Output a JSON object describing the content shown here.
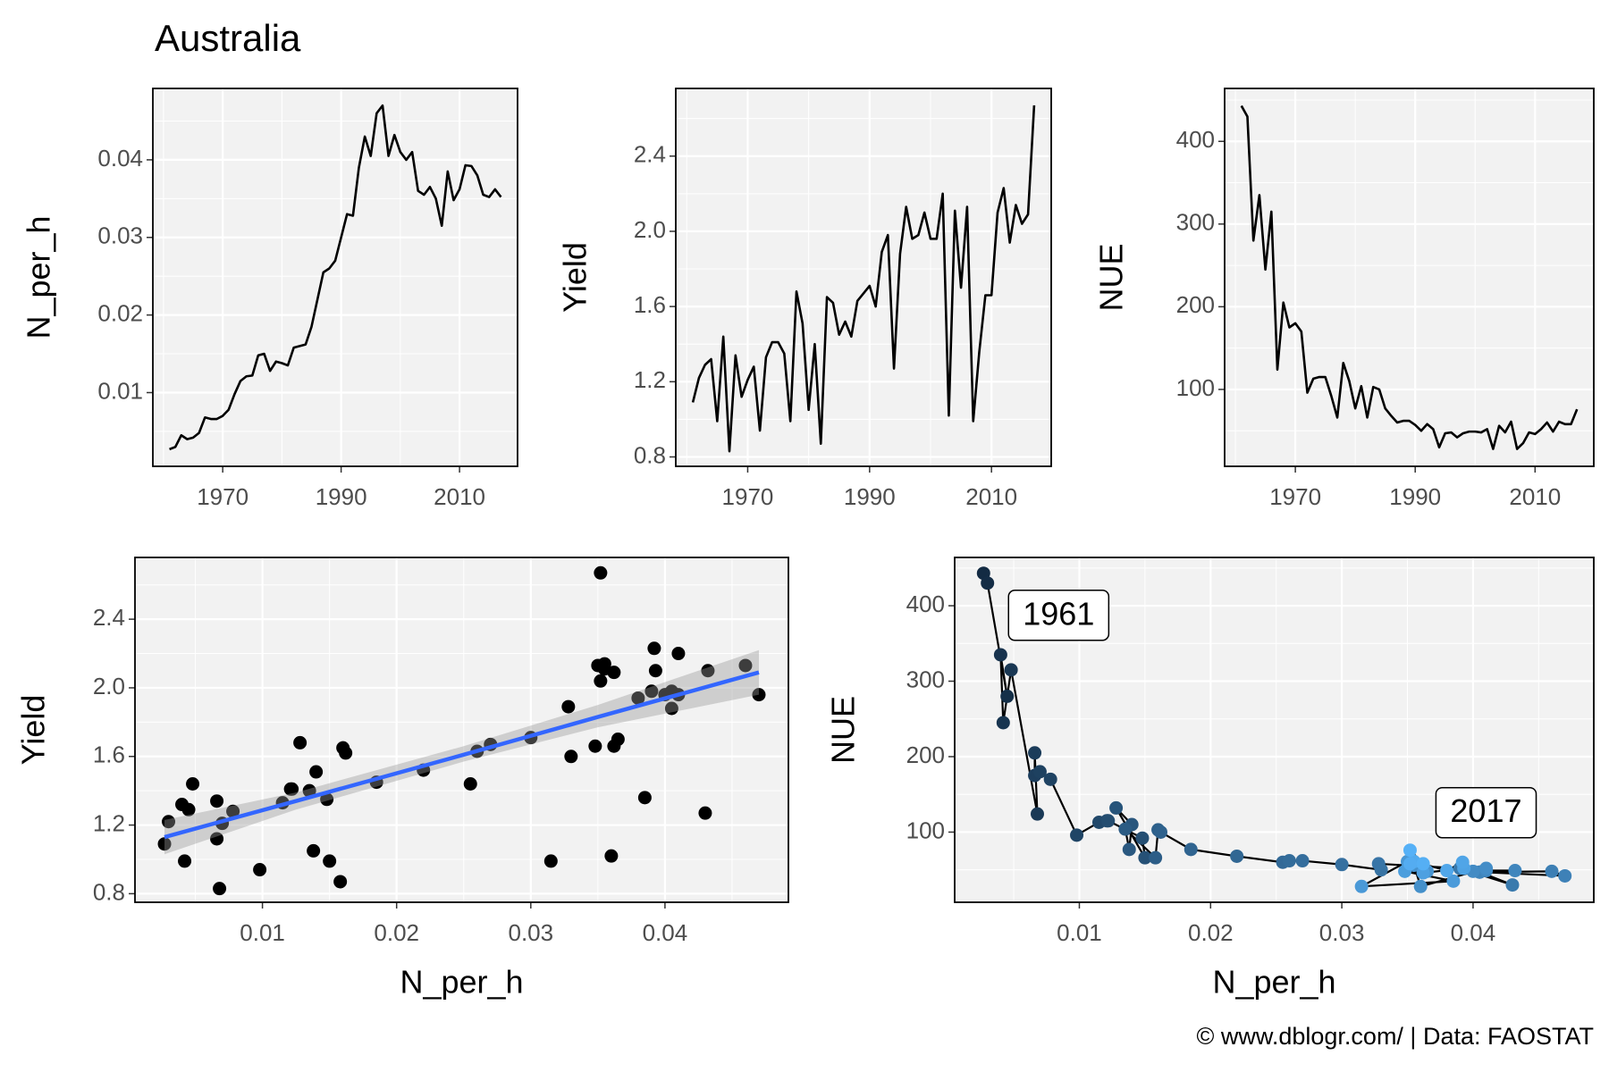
{
  "title": "Australia",
  "caption": "© www.dblogr.com/  |  Data: FAOSTAT",
  "chart_data": [
    {
      "type": "line",
      "y_label": "N_per_h",
      "x": [
        1961,
        1962,
        1963,
        1964,
        1965,
        1966,
        1967,
        1968,
        1969,
        1970,
        1971,
        1972,
        1973,
        1974,
        1975,
        1976,
        1977,
        1978,
        1979,
        1980,
        1981,
        1982,
        1983,
        1984,
        1985,
        1986,
        1987,
        1988,
        1989,
        1990,
        1991,
        1992,
        1993,
        1994,
        1995,
        1996,
        1997,
        1998,
        1999,
        2000,
        2001,
        2002,
        2003,
        2004,
        2005,
        2006,
        2007,
        2008,
        2009,
        2010,
        2011,
        2012,
        2013,
        2014,
        2015,
        2016,
        2017
      ],
      "values": [
        0.0027,
        0.003,
        0.0045,
        0.004,
        0.0042,
        0.0048,
        0.0068,
        0.0066,
        0.0066,
        0.007,
        0.0078,
        0.0098,
        0.0115,
        0.0121,
        0.0122,
        0.0148,
        0.015,
        0.0128,
        0.014,
        0.0138,
        0.0135,
        0.0158,
        0.016,
        0.0162,
        0.0185,
        0.022,
        0.0255,
        0.026,
        0.027,
        0.03,
        0.033,
        0.0328,
        0.039,
        0.043,
        0.0405,
        0.046,
        0.047,
        0.0405,
        0.0432,
        0.041,
        0.04,
        0.041,
        0.036,
        0.0355,
        0.0365,
        0.035,
        0.0315,
        0.0385,
        0.0348,
        0.0362,
        0.0393,
        0.0392,
        0.038,
        0.0355,
        0.0352,
        0.0362,
        0.0352
      ],
      "color": "#000000",
      "xlim": [
        1958.2,
        2019.8
      ],
      "xticks": [
        1970,
        1990,
        2010
      ],
      "ylim": [
        0.0005,
        0.0492
      ],
      "yticks": [
        0.01,
        0.02,
        0.03,
        0.04
      ],
      "grid": true
    },
    {
      "type": "line",
      "y_label": "Yield",
      "x": [
        1961,
        1962,
        1963,
        1964,
        1965,
        1966,
        1967,
        1968,
        1969,
        1970,
        1971,
        1972,
        1973,
        1974,
        1975,
        1976,
        1977,
        1978,
        1979,
        1980,
        1981,
        1982,
        1983,
        1984,
        1985,
        1986,
        1987,
        1988,
        1989,
        1990,
        1991,
        1992,
        1993,
        1994,
        1995,
        1996,
        1997,
        1998,
        1999,
        2000,
        2001,
        2002,
        2003,
        2004,
        2005,
        2006,
        2007,
        2008,
        2009,
        2010,
        2011,
        2012,
        2013,
        2014,
        2015,
        2016,
        2017
      ],
      "values": [
        1.09,
        1.22,
        1.29,
        1.32,
        0.99,
        1.44,
        0.83,
        1.34,
        1.12,
        1.21,
        1.28,
        0.94,
        1.33,
        1.41,
        1.41,
        1.35,
        0.99,
        1.68,
        1.51,
        1.05,
        1.4,
        0.87,
        1.65,
        1.62,
        1.45,
        1.52,
        1.44,
        1.63,
        1.67,
        1.71,
        1.6,
        1.89,
        1.98,
        1.27,
        1.88,
        2.13,
        1.96,
        1.98,
        2.1,
        1.96,
        1.96,
        2.2,
        1.02,
        2.11,
        1.7,
        2.13,
        0.99,
        1.36,
        1.66,
        1.66,
        2.1,
        2.23,
        1.94,
        2.14,
        2.04,
        2.09,
        2.67
      ],
      "color": "#000000",
      "xlim": [
        1958.2,
        2019.8
      ],
      "xticks": [
        1970,
        1990,
        2010
      ],
      "ylim": [
        0.75,
        2.76
      ],
      "yticks": [
        0.8,
        1.2,
        1.6,
        {
          "value": 2,
          "label": "2.0"
        },
        2.4
      ],
      "grid": true
    },
    {
      "type": "line",
      "y_label": "NUE",
      "x": [
        1961,
        1962,
        1963,
        1964,
        1965,
        1966,
        1967,
        1968,
        1969,
        1970,
        1971,
        1972,
        1973,
        1974,
        1975,
        1976,
        1977,
        1978,
        1979,
        1980,
        1981,
        1982,
        1983,
        1984,
        1985,
        1986,
        1987,
        1988,
        1989,
        1990,
        1991,
        1992,
        1993,
        1994,
        1995,
        1996,
        1997,
        1998,
        1999,
        2000,
        2001,
        2002,
        2003,
        2004,
        2005,
        2006,
        2007,
        2008,
        2009,
        2010,
        2011,
        2012,
        2013,
        2014,
        2015,
        2016,
        2017
      ],
      "values": [
        443,
        430,
        280,
        335,
        245,
        315,
        124,
        205,
        175,
        180,
        170,
        96,
        113,
        115,
        115,
        92,
        66,
        132,
        110,
        77,
        104,
        66,
        103,
        100,
        77,
        68,
        60,
        62,
        62,
        57,
        50,
        58,
        52,
        30,
        47,
        48,
        42,
        47,
        49,
        49,
        48,
        52,
        28,
        56,
        48,
        61,
        28,
        35,
        48,
        46,
        52,
        60,
        49,
        61,
        58,
        58,
        76
      ],
      "color": "#000000",
      "xlim": [
        1958.2,
        2019.8
      ],
      "xticks": [
        1970,
        1990,
        2010
      ],
      "ylim": [
        7,
        464
      ],
      "yticks": [
        100,
        200,
        300,
        400
      ],
      "grid": true
    },
    {
      "type": "scatter",
      "x_label": "N_per_h",
      "y_label": "Yield",
      "x": [
        0.0027,
        0.003,
        0.0045,
        0.004,
        0.0042,
        0.0048,
        0.0068,
        0.0066,
        0.0066,
        0.007,
        0.0078,
        0.0098,
        0.0115,
        0.0121,
        0.0122,
        0.0148,
        0.015,
        0.0128,
        0.014,
        0.0138,
        0.0135,
        0.0158,
        0.016,
        0.0162,
        0.0185,
        0.022,
        0.0255,
        0.026,
        0.027,
        0.03,
        0.033,
        0.0328,
        0.039,
        0.043,
        0.0405,
        0.046,
        0.047,
        0.0405,
        0.0432,
        0.041,
        0.04,
        0.041,
        0.036,
        0.0355,
        0.0365,
        0.035,
        0.0315,
        0.0385,
        0.0348,
        0.0362,
        0.0393,
        0.0392,
        0.038,
        0.0355,
        0.0352,
        0.0362,
        0.0352
      ],
      "values": [
        1.09,
        1.22,
        1.29,
        1.32,
        0.99,
        1.44,
        0.83,
        1.34,
        1.12,
        1.21,
        1.28,
        0.94,
        1.33,
        1.41,
        1.41,
        1.35,
        0.99,
        1.68,
        1.51,
        1.05,
        1.4,
        0.87,
        1.65,
        1.62,
        1.45,
        1.52,
        1.44,
        1.63,
        1.67,
        1.71,
        1.6,
        1.89,
        1.98,
        1.27,
        1.88,
        2.13,
        1.96,
        1.98,
        2.1,
        1.96,
        1.96,
        2.2,
        1.02,
        2.11,
        1.7,
        2.13,
        0.99,
        1.36,
        1.66,
        1.66,
        2.1,
        2.23,
        1.94,
        2.14,
        2.04,
        2.09,
        2.67
      ],
      "color": "#000000",
      "fit": {
        "x": [
          0.0027,
          0.0125,
          0.025,
          0.035,
          0.047
        ],
        "values": [
          1.13,
          1.34,
          1.61,
          1.83,
          2.09
        ],
        "lower": [
          1.03,
          1.29,
          1.57,
          1.77,
          1.96
        ],
        "upper": [
          1.23,
          1.39,
          1.66,
          1.9,
          2.22
        ],
        "color": "#3366ff",
        "band_color": "#999999"
      },
      "xlim": [
        0.0005,
        0.0492
      ],
      "xticks": [
        0.01,
        0.02,
        0.03,
        0.04
      ],
      "ylim": [
        0.75,
        2.76
      ],
      "yticks": [
        0.8,
        1.2,
        1.6,
        {
          "value": 2,
          "label": "2.0"
        },
        2.4
      ],
      "grid": true
    },
    {
      "type": "scatter",
      "connect": true,
      "x_label": "N_per_h",
      "y_label": "NUE",
      "x": [
        0.0027,
        0.003,
        0.0045,
        0.004,
        0.0042,
        0.0048,
        0.0068,
        0.0066,
        0.0066,
        0.007,
        0.0078,
        0.0098,
        0.0115,
        0.0121,
        0.0122,
        0.0148,
        0.015,
        0.0128,
        0.014,
        0.0138,
        0.0135,
        0.0158,
        0.016,
        0.0162,
        0.0185,
        0.022,
        0.0255,
        0.026,
        0.027,
        0.03,
        0.033,
        0.0328,
        0.039,
        0.043,
        0.0405,
        0.046,
        0.047,
        0.0405,
        0.0432,
        0.041,
        0.04,
        0.041,
        0.036,
        0.0355,
        0.0365,
        0.035,
        0.0315,
        0.0385,
        0.0348,
        0.0362,
        0.0393,
        0.0392,
        0.038,
        0.0355,
        0.0352,
        0.0362,
        0.0352
      ],
      "values": [
        443,
        430,
        280,
        335,
        245,
        315,
        124,
        205,
        175,
        180,
        170,
        96,
        113,
        115,
        115,
        92,
        66,
        132,
        110,
        77,
        104,
        66,
        103,
        100,
        77,
        68,
        60,
        62,
        62,
        57,
        50,
        58,
        52,
        30,
        47,
        48,
        42,
        47,
        49,
        49,
        48,
        52,
        28,
        56,
        48,
        61,
        28,
        35,
        48,
        46,
        52,
        60,
        49,
        61,
        58,
        58,
        76
      ],
      "color_by": [
        1961,
        1962,
        1963,
        1964,
        1965,
        1966,
        1967,
        1968,
        1969,
        1970,
        1971,
        1972,
        1973,
        1974,
        1975,
        1976,
        1977,
        1978,
        1979,
        1980,
        1981,
        1982,
        1983,
        1984,
        1985,
        1986,
        1987,
        1988,
        1989,
        1990,
        1991,
        1992,
        1993,
        1994,
        1995,
        1996,
        1997,
        1998,
        1999,
        2000,
        2001,
        2002,
        2003,
        2004,
        2005,
        2006,
        2007,
        2008,
        2009,
        2010,
        2011,
        2012,
        2013,
        2014,
        2015,
        2016,
        2017
      ],
      "color_low": "#132b43",
      "color_high": "#56b1f7",
      "line_color": "#000000",
      "annotations": [
        "1961",
        "2017"
      ],
      "xlim": [
        0.0005,
        0.0492
      ],
      "xticks": [
        0.01,
        0.02,
        0.03,
        0.04
      ],
      "ylim": [
        7,
        464
      ],
      "yticks": [
        100,
        200,
        300,
        400
      ],
      "grid": true
    }
  ]
}
